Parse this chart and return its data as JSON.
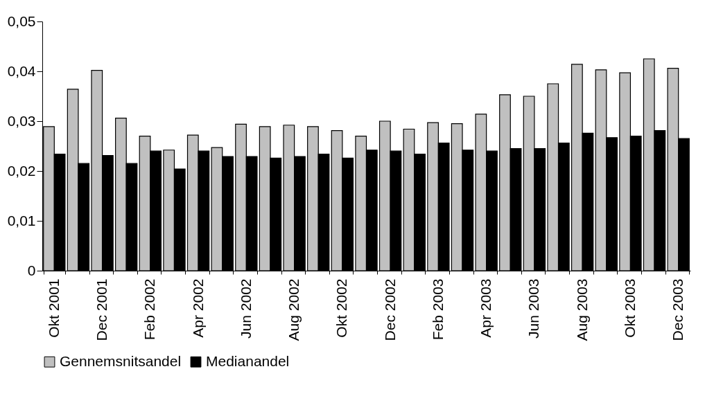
{
  "chart_data": {
    "type": "bar",
    "categories": [
      "Okt 2001",
      null,
      "Dec 2001",
      null,
      "Feb 2002",
      null,
      "Apr 2002",
      null,
      "Jun 2002",
      null,
      "Aug 2002",
      null,
      "Okt 2002",
      null,
      "Dec 2002",
      null,
      "Feb 2003",
      null,
      "Apr 2003",
      null,
      "Jun 2003",
      null,
      "Aug 2003",
      null,
      "Okt 2003",
      null,
      "Dec 2003"
    ],
    "series": [
      {
        "name": "Gennemsnitsandel",
        "color": "#c0c0c0",
        "values": [
          0.0289,
          0.0364,
          0.0402,
          0.0306,
          0.027,
          0.0242,
          0.0272,
          0.0247,
          0.0294,
          0.0289,
          0.0292,
          0.0289,
          0.0281,
          0.027,
          0.03,
          0.0284,
          0.0297,
          0.0295,
          0.0314,
          0.0353,
          0.035,
          0.0375,
          0.0414,
          0.0403,
          0.0397,
          0.0425,
          0.0406
        ]
      },
      {
        "name": "Medianandel",
        "color": "#000000",
        "values": [
          0.0234,
          0.0215,
          0.0231,
          0.0215,
          0.024,
          0.0204,
          0.024,
          0.0229,
          0.0229,
          0.0226,
          0.0229,
          0.0234,
          0.0226,
          0.0242,
          0.024,
          0.0234,
          0.0256,
          0.0242,
          0.024,
          0.0245,
          0.0245,
          0.0256,
          0.0276,
          0.0267,
          0.027,
          0.0281,
          0.0265
        ]
      }
    ],
    "ylim": [
      0,
      0.05
    ],
    "yticks": [
      0,
      {
        "value": 0.01,
        "label": "0,01"
      },
      {
        "value": 0.02,
        "label": "0,02"
      },
      {
        "value": 0.03,
        "label": "0,03"
      },
      {
        "value": 0.04,
        "label": "0,04"
      },
      {
        "value": 0.05,
        "label": "0,05"
      }
    ],
    "grid": false,
    "legend": "bottom"
  }
}
